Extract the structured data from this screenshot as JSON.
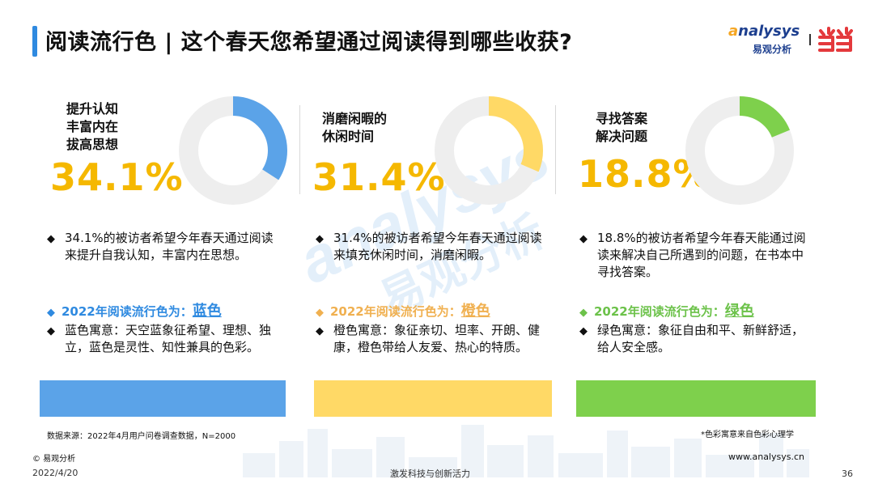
{
  "header": {
    "title": "阅读流行色 | 这个春天您希望通过阅读得到哪些收获?",
    "logo_en_prefix": "a",
    "logo_en_rest": "nalysys",
    "logo_cn": "易观分析",
    "partner_logo_text": "当当",
    "brand_color": "#2f8ae0"
  },
  "watermark": {
    "en": "analysys",
    "cn": "易观分析"
  },
  "chart_data": [
    {
      "type": "pie",
      "label": "提升认知\n丰富内在\n拔高思想",
      "value": 34.1,
      "value_text": "34.1%",
      "color": "#5ba3e8",
      "track_color": "#eeeeee"
    },
    {
      "type": "pie",
      "label": "消磨闲暇的\n休闲时间",
      "value": 31.4,
      "value_text": "31.4%",
      "color": "#ffd966",
      "track_color": "#eeeeee"
    },
    {
      "type": "pie",
      "label": "寻找答案\n解决问题",
      "value": 18.8,
      "value_text": "18.8%",
      "color": "#7ed04c",
      "track_color": "#eeeeee"
    }
  ],
  "panels": [
    {
      "desc": "34.1%的被访者希望今年春天通过阅读来提升自我认知，丰富内在思想。",
      "color_head": "2022年阅读流行色为：",
      "color_name": "蓝色",
      "meaning": "蓝色寓意：天空蓝象征希望、理想、独立，蓝色是灵性、知性兼具的色彩。",
      "accent": "#2f8ae0",
      "bar_color": "#5ba3e8"
    },
    {
      "desc": "31.4%的被访者希望今年春天通过阅读来填充休闲时间，消磨闲暇。",
      "color_head": "2022年阅读流行色为：",
      "color_name": "橙色",
      "meaning": "橙色寓意：象征亲切、坦率、开朗、健康，橙色带给人友爱、热心的特质。",
      "accent": "#f0b050",
      "bar_color": "#ffd966"
    },
    {
      "desc": "18.8%的被访者希望今年春天能通过阅读来解决自己所遇到的问题，在书本中寻找答案。",
      "color_head": "2022年阅读流行色为：",
      "color_name": "绿色",
      "meaning": "绿色寓意：象征自由和平、新鲜舒适，给人安全感。",
      "accent": "#6cc24a",
      "bar_color": "#7ed04c"
    }
  ],
  "footer": {
    "source": "数据来源：2022年4月用户问卷调查数据，N=2000",
    "footnote": "*色彩寓意来自色彩心理学",
    "copyright": "© 易观分析",
    "website": "www.analysys.cn",
    "date": "2022/4/20",
    "slogan": "激发科技与创新活力",
    "page": "36"
  },
  "icons": {
    "bullet": "diamond-bullet-icon",
    "logo": "analysys-logo-icon",
    "partner": "dangdang-logo-icon"
  }
}
